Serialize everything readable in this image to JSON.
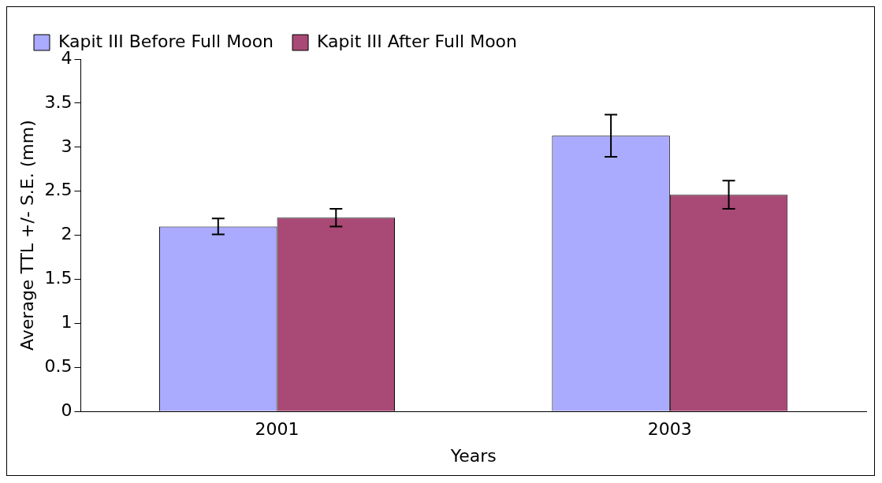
{
  "chart_data": {
    "type": "bar",
    "xlabel": "Years",
    "ylabel": "Average TTL +/- S.E. (mm)",
    "categories": [
      "2001",
      "2003"
    ],
    "series": [
      {
        "name": "Kapit III Before Full Moon",
        "color": "#aaaaff",
        "values": [
          2.1,
          3.13
        ],
        "errors": [
          0.09,
          0.24
        ]
      },
      {
        "name": "Kapit III After Full Moon",
        "color": "#a94975",
        "values": [
          2.2,
          2.46
        ],
        "errors": [
          0.1,
          0.16
        ]
      }
    ],
    "ylim": [
      0,
      4
    ],
    "yticks": [
      0,
      0.5,
      1,
      1.5,
      2,
      2.5,
      3,
      3.5,
      4
    ],
    "grid": false,
    "legend": "top left"
  }
}
